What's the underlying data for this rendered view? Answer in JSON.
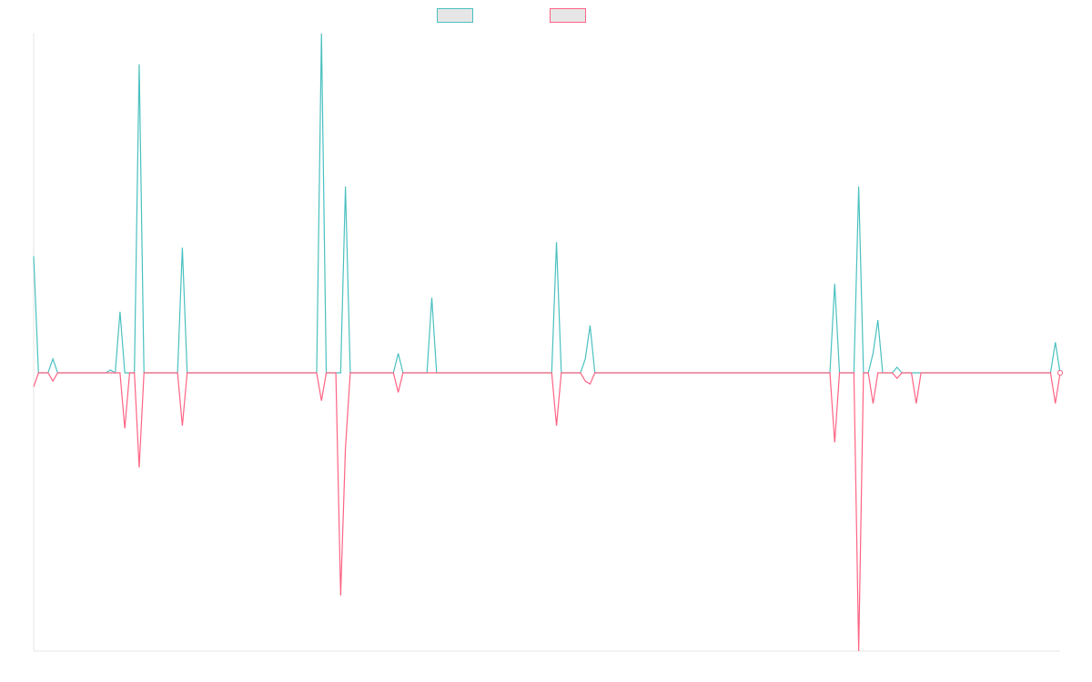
{
  "chart_data": {
    "type": "line",
    "title": "",
    "xlabel": "",
    "ylabel": "",
    "legend": "top-center",
    "grid": false,
    "ylim": [
      -100,
      122
    ],
    "x_count": 215,
    "series": [
      {
        "name": "",
        "color": "#4bc0c0",
        "points": [
          [
            0,
            42
          ],
          [
            1,
            0
          ],
          [
            4,
            5
          ],
          [
            16,
            1
          ],
          [
            18,
            22
          ],
          [
            22,
            111
          ],
          [
            31,
            45
          ],
          [
            60,
            122
          ],
          [
            65,
            67
          ],
          [
            76,
            7
          ],
          [
            83,
            27
          ],
          [
            109,
            47
          ],
          [
            115,
            5
          ],
          [
            116,
            17
          ],
          [
            167,
            32
          ],
          [
            172,
            67
          ],
          [
            175,
            7
          ],
          [
            176,
            19
          ],
          [
            180,
            2
          ],
          [
            213,
            11
          ]
        ]
      },
      {
        "name": "",
        "color": "#ff6384",
        "points": [
          [
            0,
            -5
          ],
          [
            4,
            -3
          ],
          [
            19,
            -20
          ],
          [
            22,
            -34
          ],
          [
            31,
            -19
          ],
          [
            60,
            -10
          ],
          [
            64,
            -80
          ],
          [
            65,
            -27
          ],
          [
            76,
            -7
          ],
          [
            109,
            -19
          ],
          [
            115,
            -3
          ],
          [
            116,
            -4
          ],
          [
            167,
            -25
          ],
          [
            172,
            -100
          ],
          [
            175,
            -11
          ],
          [
            180,
            -2
          ],
          [
            184,
            -11
          ],
          [
            213,
            -11
          ]
        ]
      }
    ]
  }
}
